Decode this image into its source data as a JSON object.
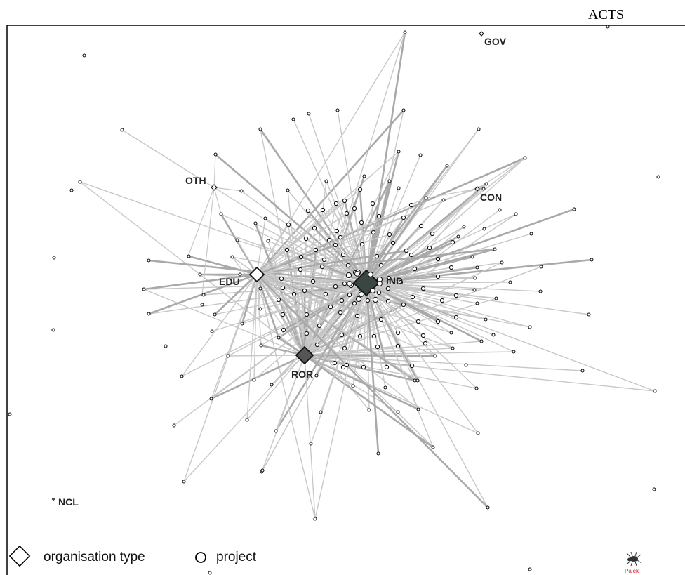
{
  "title": "ACTS",
  "hubs": [
    {
      "name": "IND",
      "size": 18,
      "dark": true
    },
    {
      "name": "EDU",
      "size": 10,
      "dark": false
    },
    {
      "name": "ROR",
      "size": 12,
      "dark": false
    },
    {
      "name": "OTH",
      "size": 4,
      "dark": false
    },
    {
      "name": "CON",
      "size": 3,
      "dark": false
    },
    {
      "name": "GOV",
      "size": 3,
      "dark": false
    },
    {
      "name": "NCL",
      "size": 1.5,
      "dark": false
    }
  ],
  "legend": {
    "organisation_label": "organisation type",
    "project_label": "project"
  },
  "watermark": {
    "label": "Pajek",
    "icon": "pajek-spider-icon"
  },
  "colors": {
    "edge": "#c8c8c8",
    "edge_strong": "#a9a9a9",
    "hub_dark": "#3a4644",
    "hub_light": "#555555",
    "border": "#000000"
  }
}
